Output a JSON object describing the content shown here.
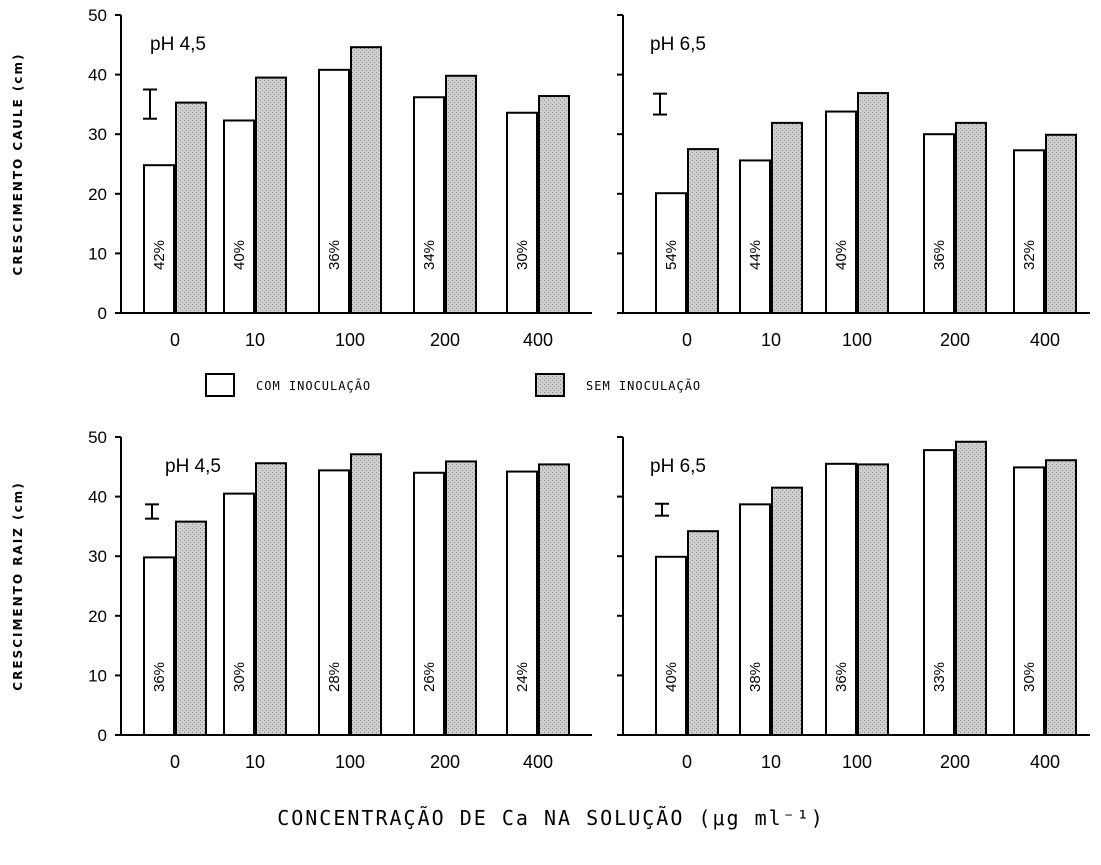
{
  "colors": {
    "com": "#ffffff",
    "sem": "#c8c8c8",
    "ink": "#000000"
  },
  "legend": {
    "com_label": "COM INOCULAÇÃO",
    "sem_label": "SEM INOCULAÇÃO"
  },
  "x_title": "CONCENTRAÇÃO DE Ca NA SOLUÇÃO (μg ml⁻¹)",
  "chart_data": [
    {
      "type": "bar",
      "id": "caule-ph45",
      "title": "pH 4,5",
      "ylabel": "CRESCIMENTO CAULE (cm)",
      "ylim": [
        0,
        50
      ],
      "yticks": [
        "0",
        "10",
        "20",
        "30",
        "40",
        "50"
      ],
      "categories": [
        "0",
        "10",
        "100",
        "200",
        "400"
      ],
      "series": [
        {
          "name": "COM INOCULAÇÃO",
          "values": [
            24.8,
            32.3,
            40.8,
            36.2,
            33.6
          ]
        },
        {
          "name": "SEM INOCULAÇÃO",
          "values": [
            35.3,
            39.5,
            44.6,
            39.8,
            36.4
          ]
        }
      ],
      "annotations": [
        "42%",
        "40%",
        "36%",
        "34%",
        "30%"
      ],
      "error_bar": {
        "low": 32.6,
        "high": 37.5
      }
    },
    {
      "type": "bar",
      "id": "caule-ph65",
      "title": "pH 6,5",
      "ylabel": "",
      "ylim": [
        0,
        50
      ],
      "yticks": [],
      "categories": [
        "0",
        "10",
        "100",
        "200",
        "400"
      ],
      "series": [
        {
          "name": "COM INOCULAÇÃO",
          "values": [
            20.1,
            25.6,
            33.8,
            30.0,
            27.3
          ]
        },
        {
          "name": "SEM INOCULAÇÃO",
          "values": [
            27.5,
            31.9,
            36.9,
            31.9,
            29.9
          ]
        }
      ],
      "annotations": [
        "54%",
        "44%",
        "40%",
        "36%",
        "32%"
      ],
      "error_bar": {
        "low": 33.3,
        "high": 36.8
      }
    },
    {
      "type": "bar",
      "id": "raiz-ph45",
      "title": "pH 4,5",
      "ylabel": "CRESCIMENTO RAIZ (cm)",
      "ylim": [
        0,
        50
      ],
      "yticks": [
        "0",
        "10",
        "20",
        "30",
        "40",
        "50"
      ],
      "categories": [
        "0",
        "10",
        "100",
        "200",
        "400"
      ],
      "series": [
        {
          "name": "COM INOCULAÇÃO",
          "values": [
            29.8,
            40.5,
            44.4,
            44.0,
            44.2
          ]
        },
        {
          "name": "SEM INOCULAÇÃO",
          "values": [
            35.8,
            45.6,
            47.1,
            45.9,
            45.4
          ]
        }
      ],
      "annotations": [
        "36%",
        "30%",
        "28%",
        "26%",
        "24%"
      ],
      "error_bar": {
        "low": 36.3,
        "high": 38.7
      }
    },
    {
      "type": "bar",
      "id": "raiz-ph65",
      "title": "pH 6,5",
      "ylabel": "",
      "ylim": [
        0,
        50
      ],
      "yticks": [],
      "categories": [
        "0",
        "10",
        "100",
        "200",
        "400"
      ],
      "series": [
        {
          "name": "COM INOCULAÇÃO",
          "values": [
            29.9,
            38.7,
            45.5,
            47.8,
            44.9
          ]
        },
        {
          "name": "SEM INOCULAÇÃO",
          "values": [
            34.2,
            41.5,
            45.4,
            49.2,
            46.1
          ]
        }
      ],
      "annotations": [
        "40%",
        "38%",
        "36%",
        "33%",
        "30%"
      ],
      "error_bar": {
        "low": 36.8,
        "high": 38.8
      }
    }
  ]
}
